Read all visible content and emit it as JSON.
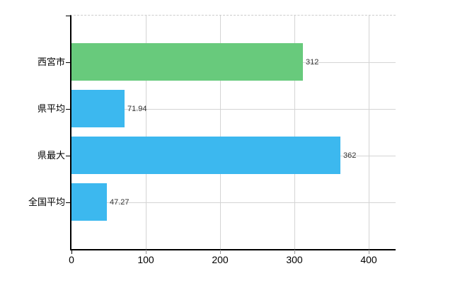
{
  "chart_data": {
    "type": "bar",
    "orientation": "horizontal",
    "title": "",
    "categories": [
      "西宮市",
      "県平均",
      "県最大",
      "全国平均"
    ],
    "series": [
      {
        "name": "values",
        "values": [
          312,
          71.94,
          362,
          47.27
        ]
      }
    ],
    "value_labels": [
      "312",
      "71.94",
      "362",
      "47.27"
    ],
    "bar_colors": [
      "#68ca7c",
      "#3cb8ef",
      "#3cb8ef",
      "#3cb8ef"
    ],
    "x_ticks": [
      {
        "label": "0",
        "value": 0
      },
      {
        "label": "100",
        "value": 100
      },
      {
        "label": "200",
        "value": 200
      },
      {
        "label": "300",
        "value": 300
      },
      {
        "label": "400",
        "value": 400
      }
    ],
    "xlim": [
      0,
      436.6
    ],
    "grid": true,
    "legend": false
  },
  "colors": {
    "bar_green": "#68ca7c",
    "bar_blue": "#3cb8ef",
    "grid": "#d4d4d4",
    "axis": "#000000",
    "plot_top_border_dashed": "#cccccc",
    "value_label_text": "#333333",
    "axis_label_text": "#000000",
    "background": "#ffffff"
  }
}
